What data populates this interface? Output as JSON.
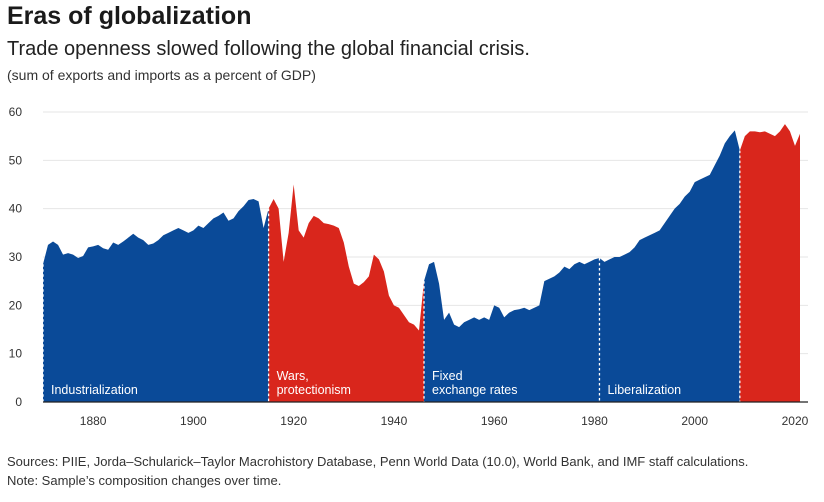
{
  "header": {
    "title": "Eras of globalization",
    "subtitle": "Trade openness slowed following the global financial crisis.",
    "units": "(sum of exports and imports as a percent of GDP)"
  },
  "footer": {
    "sources": "Sources: PIIE, Jorda–Schularick–Taylor Macrohistory Database, Penn World Data (10.0), World Bank, and IMF staff calculations.",
    "note": "Note: Sample’s composition changes over time."
  },
  "colors": {
    "blue": "#0a4a98",
    "red": "#d9261c",
    "grid": "#e6e6e6",
    "axis": "#222222"
  },
  "chart_data": {
    "type": "area",
    "title": "Eras of globalization",
    "xlabel": "",
    "ylabel": "",
    "xlim": [
      1870,
      2021
    ],
    "ylim": [
      0,
      60
    ],
    "grid": true,
    "xticks": [
      1880,
      1900,
      1920,
      1940,
      1960,
      1980,
      2000,
      2020
    ],
    "yticks": [
      0,
      10,
      20,
      30,
      40,
      50,
      60
    ],
    "series": [
      {
        "name": "Trade openness",
        "x": [
          1870,
          1871,
          1872,
          1873,
          1874,
          1875,
          1876,
          1877,
          1878,
          1879,
          1880,
          1881,
          1882,
          1883,
          1884,
          1885,
          1886,
          1887,
          1888,
          1889,
          1890,
          1891,
          1892,
          1893,
          1894,
          1895,
          1896,
          1897,
          1898,
          1899,
          1900,
          1901,
          1902,
          1903,
          1904,
          1905,
          1906,
          1907,
          1908,
          1909,
          1910,
          1911,
          1912,
          1913,
          1914,
          1915,
          1916,
          1917,
          1918,
          1919,
          1920,
          1921,
          1922,
          1923,
          1924,
          1925,
          1926,
          1927,
          1928,
          1929,
          1930,
          1931,
          1932,
          1933,
          1934,
          1935,
          1936,
          1937,
          1938,
          1939,
          1940,
          1941,
          1942,
          1943,
          1944,
          1945,
          1946,
          1947,
          1948,
          1949,
          1950,
          1951,
          1952,
          1953,
          1954,
          1955,
          1956,
          1957,
          1958,
          1959,
          1960,
          1961,
          1962,
          1963,
          1964,
          1965,
          1966,
          1967,
          1968,
          1969,
          1970,
          1971,
          1972,
          1973,
          1974,
          1975,
          1976,
          1977,
          1978,
          1979,
          1980,
          1981,
          1982,
          1983,
          1984,
          1985,
          1986,
          1987,
          1988,
          1989,
          1990,
          1991,
          1992,
          1993,
          1994,
          1995,
          1996,
          1997,
          1998,
          1999,
          2000,
          2001,
          2002,
          2003,
          2004,
          2005,
          2006,
          2007,
          2008,
          2009,
          2010,
          2011,
          2012,
          2013,
          2014,
          2015,
          2016,
          2017,
          2018,
          2019,
          2020,
          2021
        ],
        "y": [
          28.5,
          32.5,
          33.2,
          32.5,
          30.5,
          30.8,
          30.5,
          29.8,
          30.2,
          32.0,
          32.2,
          32.5,
          31.8,
          31.5,
          33.0,
          32.5,
          33.2,
          34.0,
          34.8,
          34.0,
          33.5,
          32.5,
          32.8,
          33.5,
          34.5,
          35.0,
          35.5,
          36.0,
          35.5,
          35.0,
          35.5,
          36.5,
          36.0,
          37.0,
          38.0,
          38.5,
          39.2,
          37.5,
          38.0,
          39.5,
          40.5,
          41.8,
          42.0,
          41.5,
          36.0,
          40.0,
          42.0,
          40.0,
          29.0,
          35.0,
          45.0,
          35.5,
          34.0,
          37.0,
          38.5,
          38.0,
          37.0,
          36.8,
          36.5,
          36.0,
          33.0,
          28.0,
          24.5,
          24.0,
          24.8,
          26.0,
          30.5,
          29.5,
          27.0,
          22.0,
          20.0,
          19.5,
          18.0,
          16.5,
          16.0,
          14.8,
          25.0,
          28.5,
          29.0,
          24.5,
          17.0,
          18.5,
          16.0,
          15.5,
          16.5,
          17.0,
          17.5,
          17.0,
          17.5,
          17.0,
          20.0,
          19.5,
          17.5,
          18.5,
          19.0,
          19.2,
          19.5,
          19.0,
          19.5,
          20.0,
          25.0,
          25.5,
          26.0,
          26.8,
          28.0,
          27.5,
          28.5,
          29.0,
          28.5,
          29.0,
          29.5,
          29.8,
          29.0,
          29.5,
          30.0,
          30.0,
          30.5,
          31.0,
          32.0,
          33.5,
          34.0,
          34.5,
          35.0,
          35.5,
          37.0,
          38.5,
          40.0,
          41.0,
          42.5,
          43.5,
          45.5,
          46.0,
          46.5,
          47.0,
          49.0,
          51.0,
          53.5,
          55.0,
          56.2,
          52.0,
          55.0,
          56.0,
          56.0,
          55.8,
          56.0,
          55.5,
          55.0,
          56.0,
          57.5,
          56.0,
          53.0,
          55.5
        ]
      }
    ],
    "eras": [
      {
        "name": "Industrialization",
        "start": 1870,
        "end": 1915,
        "color": "blue"
      },
      {
        "name": "Wars, protectionism",
        "start": 1915,
        "end": 1946,
        "color": "red"
      },
      {
        "name": "Fixed exchange rates",
        "start": 1946,
        "end": 1981,
        "color": "blue"
      },
      {
        "name": "Liberalization",
        "start": 1981,
        "end": 2009,
        "color": "blue"
      },
      {
        "name": "",
        "start": 2009,
        "end": 2021,
        "color": "red"
      }
    ],
    "era_labels": [
      {
        "lines": [
          "Industrialization"
        ],
        "x": 1871
      },
      {
        "lines": [
          "Wars,",
          "protectionism"
        ],
        "x": 1916
      },
      {
        "lines": [
          "Fixed",
          "exchange rates"
        ],
        "x": 1947
      },
      {
        "lines": [
          "Liberalization"
        ],
        "x": 1982
      }
    ],
    "dividers": [
      1870,
      1915,
      1946,
      1981,
      2009
    ]
  }
}
